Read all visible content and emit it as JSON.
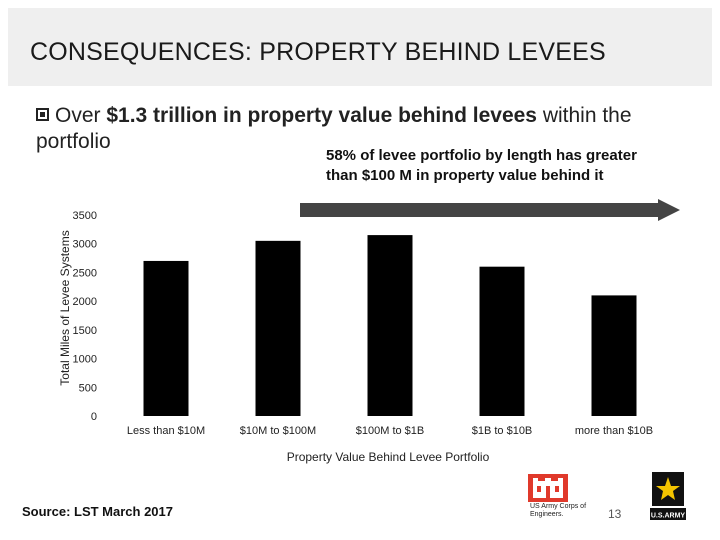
{
  "slide": {
    "title": "CONSEQUENCES:  PROPERTY BEHIND LEVEES",
    "bullet": {
      "prefix": "Over ",
      "emphasis": "$1.3 trillion in property value behind levees",
      "suffix": " within the portfolio"
    },
    "callout": "58% of levee portfolio by length has greater than $100 M in property value behind it",
    "source": "Source:  LST March 2017",
    "page_number": "13",
    "logos": {
      "usace_text": "US Army Corps of Engineers.",
      "army_text": "U.S.ARMY"
    },
    "colors": {
      "bar": "#000000",
      "arrow": "#333333",
      "usace_red": "#e0392b"
    }
  },
  "chart_data": {
    "type": "bar",
    "categories": [
      "Less than $10M",
      "$10M to $100M",
      "$100M to $1B",
      "$1B to $10B",
      "more than $10B"
    ],
    "values": [
      2700,
      3050,
      3150,
      2600,
      2100
    ],
    "yticks": [
      "0",
      "500",
      "1000",
      "1500",
      "2000",
      "2500",
      "3000",
      "3500"
    ],
    "ylim": [
      0,
      3500
    ],
    "xlabel": "Property Value Behind Levee Portfolio",
    "ylabel": "Total Miles of Levee Systems",
    "grid": false
  }
}
